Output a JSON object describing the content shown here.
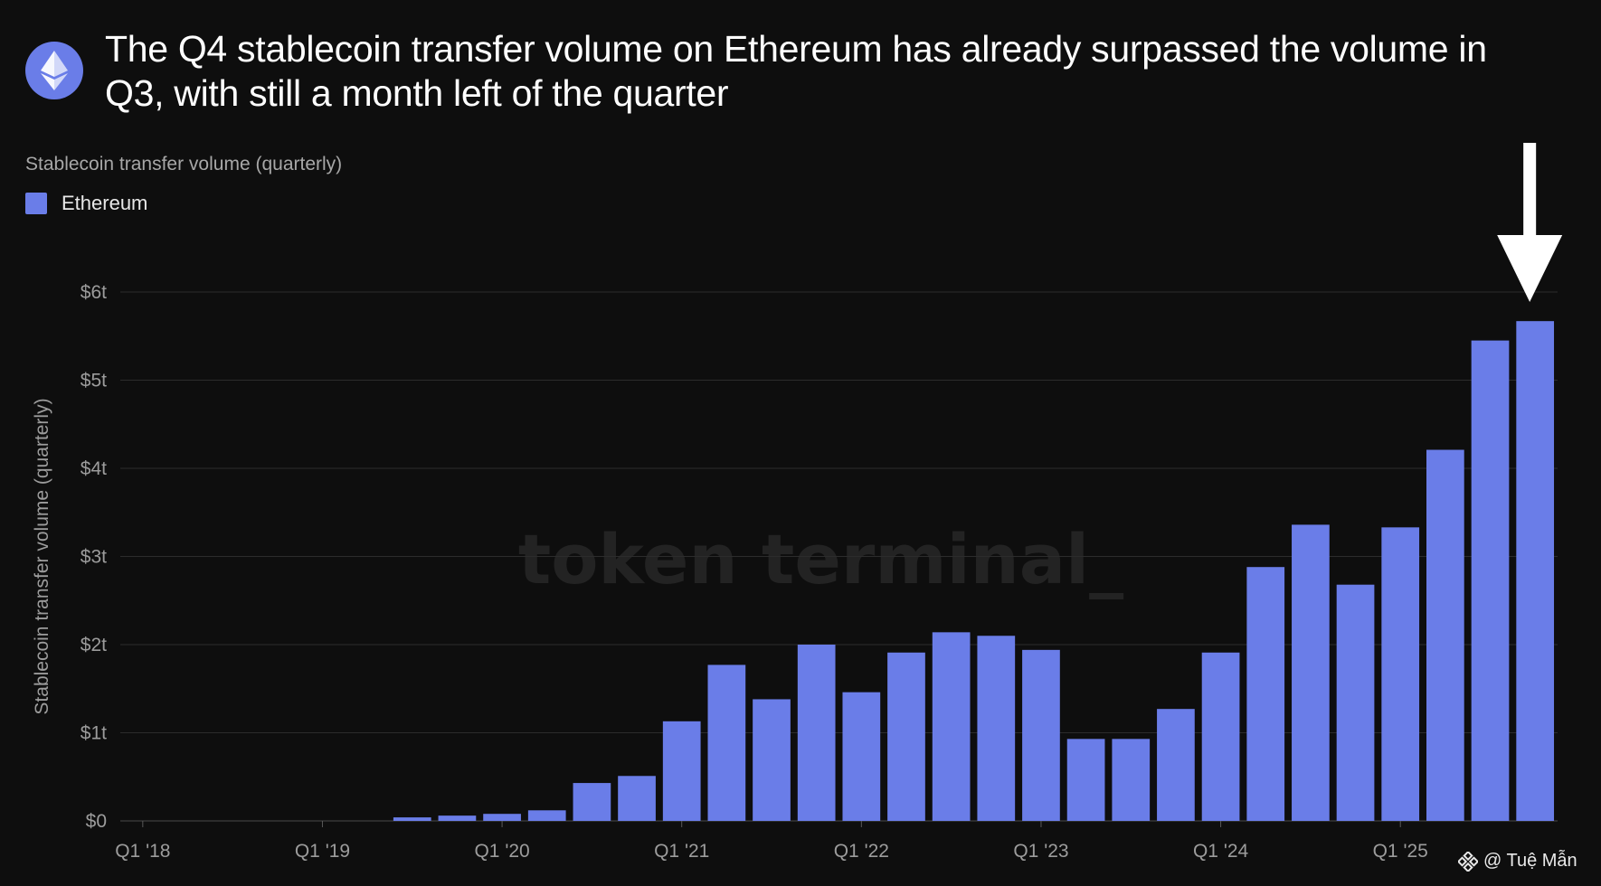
{
  "header": {
    "title": "The Q4 stablecoin transfer volume on Ethereum has already surpassed the volume in Q3, with still a month left of the quarter",
    "subtitle": "Stablecoin transfer volume (quarterly)"
  },
  "watermark": "token terminal_",
  "credit": {
    "icon": "binance-logo-icon",
    "text": "@ Tuệ Mẫn"
  },
  "logo_icon": "ethereum-logo-icon",
  "colors": {
    "background": "#0e0e0e",
    "bar": "#6a7de8",
    "grid": "#2c2c2c",
    "axis_text": "#9c9c9c",
    "watermark": "#232323",
    "arrow": "#ffffff"
  },
  "chart_data": {
    "type": "bar",
    "title": "Stablecoin transfer volume (quarterly)",
    "ylabel": "Stablecoin transfer volume (quarterly)",
    "xlabel": "",
    "ylim": [
      0,
      6
    ],
    "yticks": [
      0,
      1,
      2,
      3,
      4,
      5,
      6
    ],
    "ytick_labels": [
      "$0",
      "$1t",
      "$2t",
      "$3t",
      "$4t",
      "$5t",
      "$6t"
    ],
    "x_tick_labels": [
      {
        "category": "Q1 '18",
        "label": "Q1 '18"
      },
      {
        "category": "Q1 '19",
        "label": "Q1 '19"
      },
      {
        "category": "Q1 '20",
        "label": "Q1 '20"
      },
      {
        "category": "Q1 '21",
        "label": "Q1 '21"
      },
      {
        "category": "Q1 '22",
        "label": "Q1 '22"
      },
      {
        "category": "Q1 '23",
        "label": "Q1 '23"
      },
      {
        "category": "Q1 '24",
        "label": "Q1 '24"
      },
      {
        "category": "Q1 '25",
        "label": "Q1 '25"
      }
    ],
    "grid": true,
    "legend": {
      "position": "top-left",
      "entries": [
        "Ethereum"
      ]
    },
    "annotation": {
      "type": "arrow",
      "points_to": "Q4 '25"
    },
    "categories": [
      "Q1 '18",
      "Q2 '18",
      "Q3 '18",
      "Q4 '18",
      "Q1 '19",
      "Q2 '19",
      "Q3 '19",
      "Q4 '19",
      "Q1 '20",
      "Q2 '20",
      "Q3 '20",
      "Q4 '20",
      "Q1 '21",
      "Q2 '21",
      "Q3 '21",
      "Q4 '21",
      "Q1 '22",
      "Q2 '22",
      "Q3 '22",
      "Q4 '22",
      "Q1 '23",
      "Q2 '23",
      "Q3 '23",
      "Q4 '23",
      "Q1 '24",
      "Q2 '24",
      "Q3 '24",
      "Q4 '24",
      "Q1 '25",
      "Q2 '25",
      "Q3 '25",
      "Q4 '25"
    ],
    "series": [
      {
        "name": "Ethereum",
        "color": "#6a7de8",
        "values": [
          0,
          0,
          0,
          0,
          0,
          0,
          0.04,
          0.06,
          0.08,
          0.12,
          0.43,
          0.51,
          1.13,
          1.77,
          1.38,
          2.0,
          1.46,
          1.91,
          2.14,
          2.1,
          1.94,
          0.93,
          0.93,
          1.27,
          1.91,
          2.88,
          3.36,
          2.68,
          3.33,
          4.21,
          5.45,
          5.67
        ]
      }
    ]
  }
}
